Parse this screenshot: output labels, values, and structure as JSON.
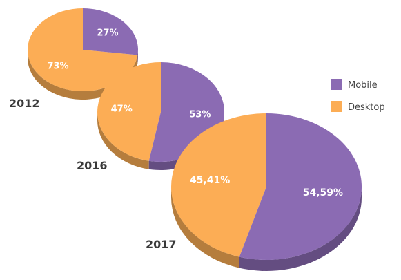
{
  "chart_data": {
    "type": "pie",
    "legend": {
      "placement": "right",
      "entries": [
        {
          "name": "Mobile",
          "color": "#8b6bb3"
        },
        {
          "name": "Desktop",
          "color": "#fcad55"
        }
      ]
    },
    "pies": [
      {
        "year": "2012",
        "slices": [
          {
            "series": "Mobile",
            "value": 27,
            "label": "27%"
          },
          {
            "series": "Desktop",
            "value": 73,
            "label": "73%"
          }
        ]
      },
      {
        "year": "2016",
        "slices": [
          {
            "series": "Mobile",
            "value": 53,
            "label": "53%"
          },
          {
            "series": "Desktop",
            "value": 47,
            "label": "47%"
          }
        ]
      },
      {
        "year": "2017",
        "slices": [
          {
            "series": "Mobile",
            "value": 54.59,
            "label": "54,59%"
          },
          {
            "series": "Desktop",
            "value": 45.41,
            "label": "45,41%"
          }
        ]
      }
    ]
  }
}
